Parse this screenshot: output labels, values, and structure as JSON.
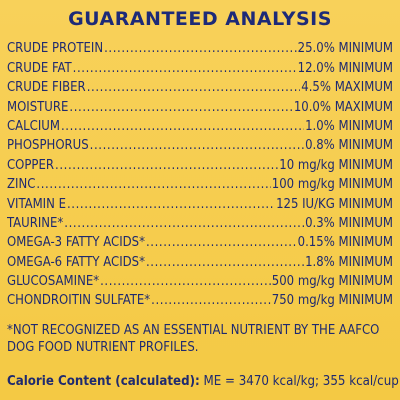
{
  "title": "GUARANTEED ANALYSIS",
  "rows": [
    {
      "label": "CRUDE PROTEIN",
      "value": "25.0% MINIMUM"
    },
    {
      "label": "CRUDE FAT",
      "value": "12.0% MINIMUM"
    },
    {
      "label": "CRUDE FIBER",
      "value": "4.5% MAXIMUM"
    },
    {
      "label": "MOISTURE",
      "value": "10.0% MAXIMUM"
    },
    {
      "label": "CALCIUM",
      "value": "1.0% MINIMUM"
    },
    {
      "label": "PHOSPHORUS",
      "value": "0.8% MINIMUM"
    },
    {
      "label": "COPPER",
      "value": "10 mg/kg MINIMUM"
    },
    {
      "label": "ZINC",
      "value": "100 mg/kg MINIMUM"
    },
    {
      "label": "VITAMIN E",
      "value": "125 IU/KG MINIMUM"
    },
    {
      "label": "TAURINE*",
      "value": "0.3% MINIMUM"
    },
    {
      "label": "OMEGA-3 FATTY ACIDS*",
      "value": "0.15% MINIMUM"
    },
    {
      "label": "OMEGA-6 FATTY ACIDS*",
      "value": "1.8% MINIMUM"
    },
    {
      "label": "GLUCOSAMINE*",
      "value": "500 mg/kg MINIMUM"
    },
    {
      "label": "CHONDROITIN SULFATE*",
      "value": "750 mg/kg MINIMUM"
    }
  ],
  "footnote": "*NOT RECOGNIZED AS AN ESSENTIAL NUTRIENT BY THE AAFCO DOG FOOD NUTRIENT PROFILES.",
  "calorie": {
    "label": "Calorie Content (calculated):",
    "value": " ME = 3470 kcal/kg; 355 kcal/cup"
  },
  "colors": {
    "background": "#f6cc4a",
    "text": "#1f2a6f"
  }
}
